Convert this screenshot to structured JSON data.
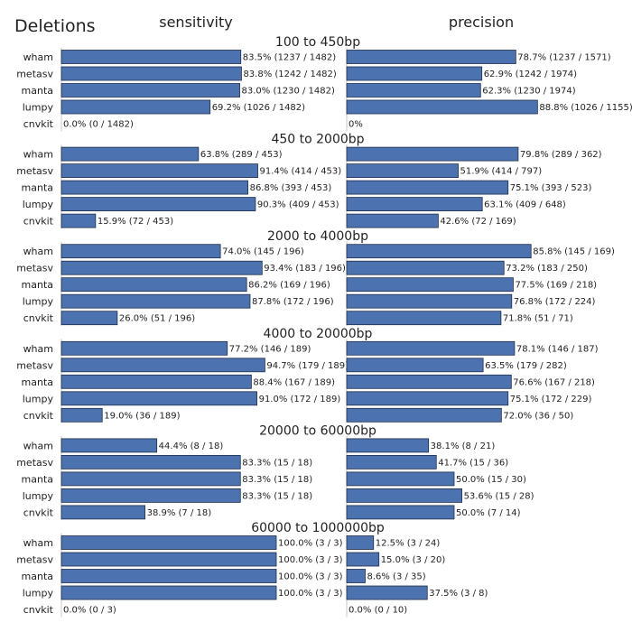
{
  "figure": {
    "title": "Deletions",
    "columns": [
      "sensitivity",
      "precision"
    ]
  },
  "chart_data": {
    "type": "bar",
    "orientation": "horizontal",
    "title": "Deletions",
    "grid": false,
    "categories": [
      "wham",
      "metasv",
      "manta",
      "lumpy",
      "cnvkit"
    ],
    "panels": [
      {
        "range": "100 to 450bp",
        "sensitivity": [
          {
            "tool": "wham",
            "value": 83.5,
            "label": "83.5% (1237 / 1482)"
          },
          {
            "tool": "metasv",
            "value": 83.8,
            "label": "83.8% (1242 / 1482)"
          },
          {
            "tool": "manta",
            "value": 83.0,
            "label": "83.0% (1230 / 1482)"
          },
          {
            "tool": "lumpy",
            "value": 69.2,
            "label": "69.2% (1026 / 1482)"
          },
          {
            "tool": "cnvkit",
            "value": 0.0,
            "label": "0.0% (0 / 1482)"
          }
        ],
        "precision": [
          {
            "tool": "wham",
            "value": 78.7,
            "label": "78.7% (1237 / 1571)"
          },
          {
            "tool": "metasv",
            "value": 62.9,
            "label": "62.9% (1242 / 1974)"
          },
          {
            "tool": "manta",
            "value": 62.3,
            "label": "62.3% (1230 / 1974)"
          },
          {
            "tool": "lumpy",
            "value": 88.8,
            "label": "88.8% (1026 / 1155)"
          },
          {
            "tool": "cnvkit",
            "value": 0.0,
            "label": "0%"
          }
        ]
      },
      {
        "range": "450 to 2000bp",
        "sensitivity": [
          {
            "tool": "wham",
            "value": 63.8,
            "label": "63.8% (289 / 453)"
          },
          {
            "tool": "metasv",
            "value": 91.4,
            "label": "91.4% (414 / 453)"
          },
          {
            "tool": "manta",
            "value": 86.8,
            "label": "86.8% (393 / 453)"
          },
          {
            "tool": "lumpy",
            "value": 90.3,
            "label": "90.3% (409 / 453)"
          },
          {
            "tool": "cnvkit",
            "value": 15.9,
            "label": "15.9% (72 / 453)"
          }
        ],
        "precision": [
          {
            "tool": "wham",
            "value": 79.8,
            "label": "79.8% (289 / 362)"
          },
          {
            "tool": "metasv",
            "value": 51.9,
            "label": "51.9% (414 / 797)"
          },
          {
            "tool": "manta",
            "value": 75.1,
            "label": "75.1% (393 / 523)"
          },
          {
            "tool": "lumpy",
            "value": 63.1,
            "label": "63.1% (409 / 648)"
          },
          {
            "tool": "cnvkit",
            "value": 42.6,
            "label": "42.6% (72 / 169)"
          }
        ]
      },
      {
        "range": "2000 to 4000bp",
        "sensitivity": [
          {
            "tool": "wham",
            "value": 74.0,
            "label": "74.0% (145 / 196)"
          },
          {
            "tool": "metasv",
            "value": 93.4,
            "label": "93.4% (183 / 196)"
          },
          {
            "tool": "manta",
            "value": 86.2,
            "label": "86.2% (169 / 196)"
          },
          {
            "tool": "lumpy",
            "value": 87.8,
            "label": "87.8% (172 / 196)"
          },
          {
            "tool": "cnvkit",
            "value": 26.0,
            "label": "26.0% (51 / 196)"
          }
        ],
        "precision": [
          {
            "tool": "wham",
            "value": 85.8,
            "label": "85.8% (145 / 169)"
          },
          {
            "tool": "metasv",
            "value": 73.2,
            "label": "73.2% (183 / 250)"
          },
          {
            "tool": "manta",
            "value": 77.5,
            "label": "77.5% (169 / 218)"
          },
          {
            "tool": "lumpy",
            "value": 76.8,
            "label": "76.8% (172 / 224)"
          },
          {
            "tool": "cnvkit",
            "value": 71.8,
            "label": "71.8% (51 / 71)"
          }
        ]
      },
      {
        "range": "4000 to 20000bp",
        "sensitivity": [
          {
            "tool": "wham",
            "value": 77.2,
            "label": "77.2% (146 / 189)"
          },
          {
            "tool": "metasv",
            "value": 94.7,
            "label": "94.7% (179 / 189)"
          },
          {
            "tool": "manta",
            "value": 88.4,
            "label": "88.4% (167 / 189)"
          },
          {
            "tool": "lumpy",
            "value": 91.0,
            "label": "91.0% (172 / 189)"
          },
          {
            "tool": "cnvkit",
            "value": 19.0,
            "label": "19.0% (36 / 189)"
          }
        ],
        "precision": [
          {
            "tool": "wham",
            "value": 78.1,
            "label": "78.1% (146 / 187)"
          },
          {
            "tool": "metasv",
            "value": 63.5,
            "label": "63.5% (179 / 282)"
          },
          {
            "tool": "manta",
            "value": 76.6,
            "label": "76.6% (167 / 218)"
          },
          {
            "tool": "lumpy",
            "value": 75.1,
            "label": "75.1% (172 / 229)"
          },
          {
            "tool": "cnvkit",
            "value": 72.0,
            "label": "72.0% (36 / 50)"
          }
        ]
      },
      {
        "range": "20000 to 60000bp",
        "sensitivity": [
          {
            "tool": "wham",
            "value": 44.4,
            "label": "44.4% (8 / 18)"
          },
          {
            "tool": "metasv",
            "value": 83.3,
            "label": "83.3% (15 / 18)"
          },
          {
            "tool": "manta",
            "value": 83.3,
            "label": "83.3% (15 / 18)"
          },
          {
            "tool": "lumpy",
            "value": 83.3,
            "label": "83.3% (15 / 18)"
          },
          {
            "tool": "cnvkit",
            "value": 38.9,
            "label": "38.9% (7 / 18)"
          }
        ],
        "precision": [
          {
            "tool": "wham",
            "value": 38.1,
            "label": "38.1% (8 / 21)"
          },
          {
            "tool": "metasv",
            "value": 41.7,
            "label": "41.7% (15 / 36)"
          },
          {
            "tool": "manta",
            "value": 50.0,
            "label": "50.0% (15 / 30)"
          },
          {
            "tool": "lumpy",
            "value": 53.6,
            "label": "53.6% (15 / 28)"
          },
          {
            "tool": "cnvkit",
            "value": 50.0,
            "label": "50.0% (7 / 14)"
          }
        ]
      },
      {
        "range": "60000 to 1000000bp",
        "sensitivity": [
          {
            "tool": "wham",
            "value": 100.0,
            "label": "100.0% (3 / 3)"
          },
          {
            "tool": "metasv",
            "value": 100.0,
            "label": "100.0% (3 / 3)"
          },
          {
            "tool": "manta",
            "value": 100.0,
            "label": "100.0% (3 / 3)"
          },
          {
            "tool": "lumpy",
            "value": 100.0,
            "label": "100.0% (3 / 3)"
          },
          {
            "tool": "cnvkit",
            "value": 0.0,
            "label": "0.0% (0 / 3)"
          }
        ],
        "precision": [
          {
            "tool": "wham",
            "value": 12.5,
            "label": "12.5% (3 / 24)"
          },
          {
            "tool": "metasv",
            "value": 15.0,
            "label": "15.0% (3 / 20)"
          },
          {
            "tool": "manta",
            "value": 8.6,
            "label": "8.6% (3 / 35)"
          },
          {
            "tool": "lumpy",
            "value": 37.5,
            "label": "37.5% (3 / 8)"
          },
          {
            "tool": "cnvkit",
            "value": 0.0,
            "label": "0.0% (0 / 10)"
          }
        ]
      }
    ]
  }
}
